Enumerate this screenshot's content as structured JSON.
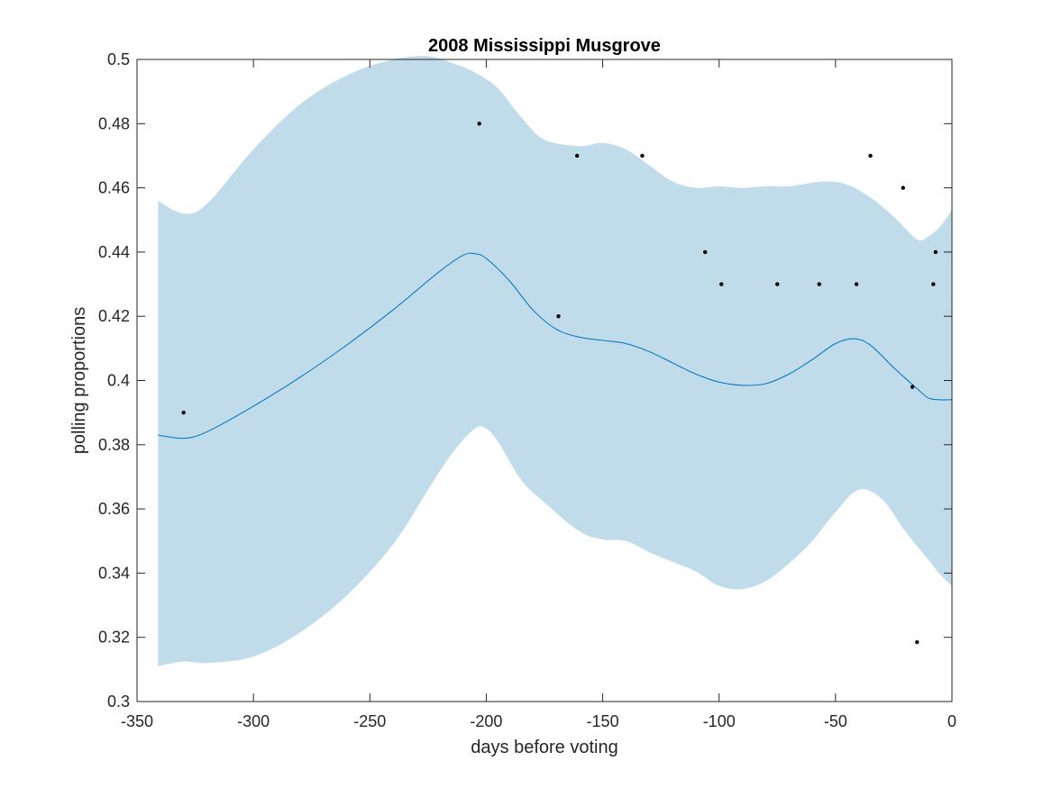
{
  "chart_data": {
    "type": "line",
    "title": "2008 Mississippi Musgrove",
    "xlabel": "days before voting",
    "ylabel": "polling proportions",
    "xlim": [
      -350,
      0
    ],
    "ylim": [
      0.3,
      0.5
    ],
    "xticks": [
      -350,
      -300,
      -250,
      -200,
      -150,
      -100,
      -50,
      0
    ],
    "yticks": [
      0.3,
      0.32,
      0.34,
      0.36,
      0.38,
      0.4,
      0.42,
      0.44,
      0.46,
      0.48,
      0.5
    ],
    "xtick_labels": [
      "-350",
      "-300",
      "-250",
      "-200",
      "-150",
      "-100",
      "-50",
      "0"
    ],
    "ytick_labels": [
      "0.3",
      "0.32",
      "0.34",
      "0.36",
      "0.38",
      "0.4",
      "0.42",
      "0.44",
      "0.46",
      "0.48",
      "0.5"
    ],
    "grid": false,
    "colors": {
      "band": "#c0dceb",
      "mean": "#0072bd",
      "points": "#000000"
    },
    "mean_curve": {
      "x": [
        -341,
        -330,
        -320,
        -300,
        -280,
        -260,
        -240,
        -220,
        -210,
        -205,
        -200,
        -190,
        -180,
        -170,
        -160,
        -150,
        -140,
        -130,
        -120,
        -110,
        -100,
        -90,
        -80,
        -70,
        -60,
        -50,
        -42,
        -35,
        -25,
        -15,
        -10,
        -5,
        0
      ],
      "y": [
        0.383,
        0.382,
        0.384,
        0.392,
        0.401,
        0.411,
        0.422,
        0.434,
        0.439,
        0.4395,
        0.438,
        0.431,
        0.422,
        0.416,
        0.4135,
        0.4125,
        0.4115,
        0.409,
        0.4055,
        0.402,
        0.3995,
        0.3985,
        0.399,
        0.402,
        0.4065,
        0.4115,
        0.413,
        0.411,
        0.404,
        0.3975,
        0.3945,
        0.394,
        0.394
      ]
    },
    "upper_band": {
      "x": [
        -341,
        -330,
        -320,
        -300,
        -280,
        -260,
        -240,
        -225,
        -215,
        -205,
        -195,
        -185,
        -175,
        -160,
        -150,
        -140,
        -130,
        -120,
        -110,
        -100,
        -90,
        -80,
        -70,
        -55,
        -45,
        -35,
        -25,
        -15,
        -10,
        -5,
        0
      ],
      "y": [
        0.456,
        0.452,
        0.455,
        0.472,
        0.486,
        0.495,
        0.5,
        0.501,
        0.499,
        0.496,
        0.491,
        0.482,
        0.475,
        0.473,
        0.474,
        0.472,
        0.467,
        0.462,
        0.46,
        0.4605,
        0.46,
        0.4605,
        0.4605,
        0.462,
        0.461,
        0.457,
        0.451,
        0.444,
        0.445,
        0.448,
        0.453
      ]
    },
    "lower_band": {
      "x": [
        -341,
        -330,
        -320,
        -300,
        -280,
        -260,
        -240,
        -225,
        -215,
        -205,
        -200,
        -195,
        -185,
        -175,
        -160,
        -150,
        -140,
        -130,
        -120,
        -110,
        -100,
        -90,
        -80,
        -70,
        -60,
        -50,
        -40,
        -30,
        -20,
        -10,
        -5,
        0
      ],
      "y": [
        0.311,
        0.3125,
        0.312,
        0.314,
        0.3215,
        0.333,
        0.349,
        0.366,
        0.377,
        0.385,
        0.385,
        0.381,
        0.369,
        0.362,
        0.353,
        0.3505,
        0.35,
        0.3465,
        0.3435,
        0.3405,
        0.336,
        0.335,
        0.3375,
        0.343,
        0.35,
        0.359,
        0.366,
        0.363,
        0.353,
        0.344,
        0.3395,
        0.336
      ]
    },
    "points": {
      "x": [
        -330,
        -203,
        -169,
        -161,
        -133,
        -106,
        -99,
        -75,
        -57,
        -41,
        -35,
        -21,
        -17,
        -15,
        -8,
        -7
      ],
      "y": [
        0.39,
        0.48,
        0.42,
        0.47,
        0.47,
        0.44,
        0.43,
        0.43,
        0.43,
        0.43,
        0.47,
        0.46,
        0.398,
        0.3185,
        0.43,
        0.44
      ]
    }
  }
}
